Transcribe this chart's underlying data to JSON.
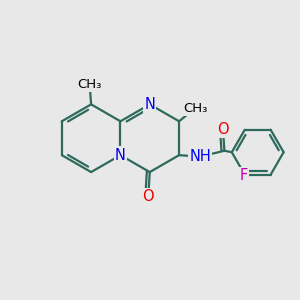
{
  "bg_color": "#e8e8e8",
  "bond_color": "#2d6a5c",
  "bond_width": 1.6,
  "atom_colors": {
    "N": "#0000ee",
    "O": "#ee0000",
    "F": "#cc00aa",
    "NH": "#0000ee"
  },
  "font_size": 10.5,
  "methyl_font_size": 9.5
}
